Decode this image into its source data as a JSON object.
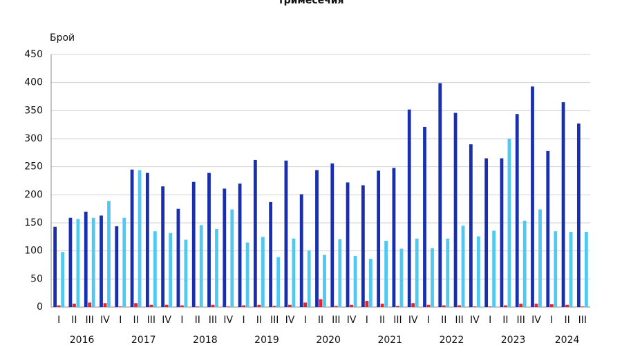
{
  "chart_data": {
    "type": "bar",
    "title": "тримесечия",
    "y_label": "Брой",
    "categories": [
      "I",
      "II",
      "III",
      "IV",
      "I",
      "II",
      "III",
      "IV",
      "I",
      "II",
      "III",
      "IV",
      "I",
      "II",
      "III",
      "IV",
      "I",
      "II",
      "III",
      "IV",
      "I",
      "II",
      "III",
      "IV",
      "I",
      "II",
      "III",
      "IV",
      "I",
      "II",
      "III",
      "IV",
      "I",
      "II",
      "III"
    ],
    "years": [
      "2016",
      "2017",
      "2018",
      "2019",
      "2020",
      "2021",
      "2022",
      "2023",
      "2024"
    ],
    "series": [
      {
        "color": "#1a2fae",
        "values": [
          143,
          159,
          170,
          163,
          144,
          245,
          239,
          215,
          175,
          223,
          239,
          211,
          220,
          262,
          187,
          261,
          201,
          244,
          256,
          222,
          217,
          243,
          248,
          352,
          321,
          399,
          346,
          290,
          265,
          265,
          344,
          393,
          278,
          365,
          327
        ]
      },
      {
        "color": "#e8202a",
        "values": [
          3,
          6,
          8,
          7,
          1,
          7,
          4,
          4,
          3,
          1,
          4,
          1,
          3,
          4,
          2,
          4,
          8,
          14,
          2,
          4,
          11,
          6,
          2,
          7,
          4,
          3,
          3,
          1,
          1,
          3,
          6,
          6,
          5,
          4,
          1
        ]
      },
      {
        "color": "#4fc8f2",
        "values": [
          98,
          157,
          159,
          189,
          159,
          244,
          135,
          132,
          120,
          146,
          139,
          174,
          115,
          125,
          89,
          122,
          101,
          93,
          121,
          91,
          86,
          118,
          104,
          122,
          105,
          122,
          145,
          126,
          136,
          300,
          154,
          174,
          135,
          134,
          134
        ]
      }
    ],
    "ylim": [
      0,
      450
    ],
    "yticks": [
      0,
      50,
      100,
      150,
      200,
      250,
      300,
      350,
      400,
      450
    ],
    "grid": true
  }
}
